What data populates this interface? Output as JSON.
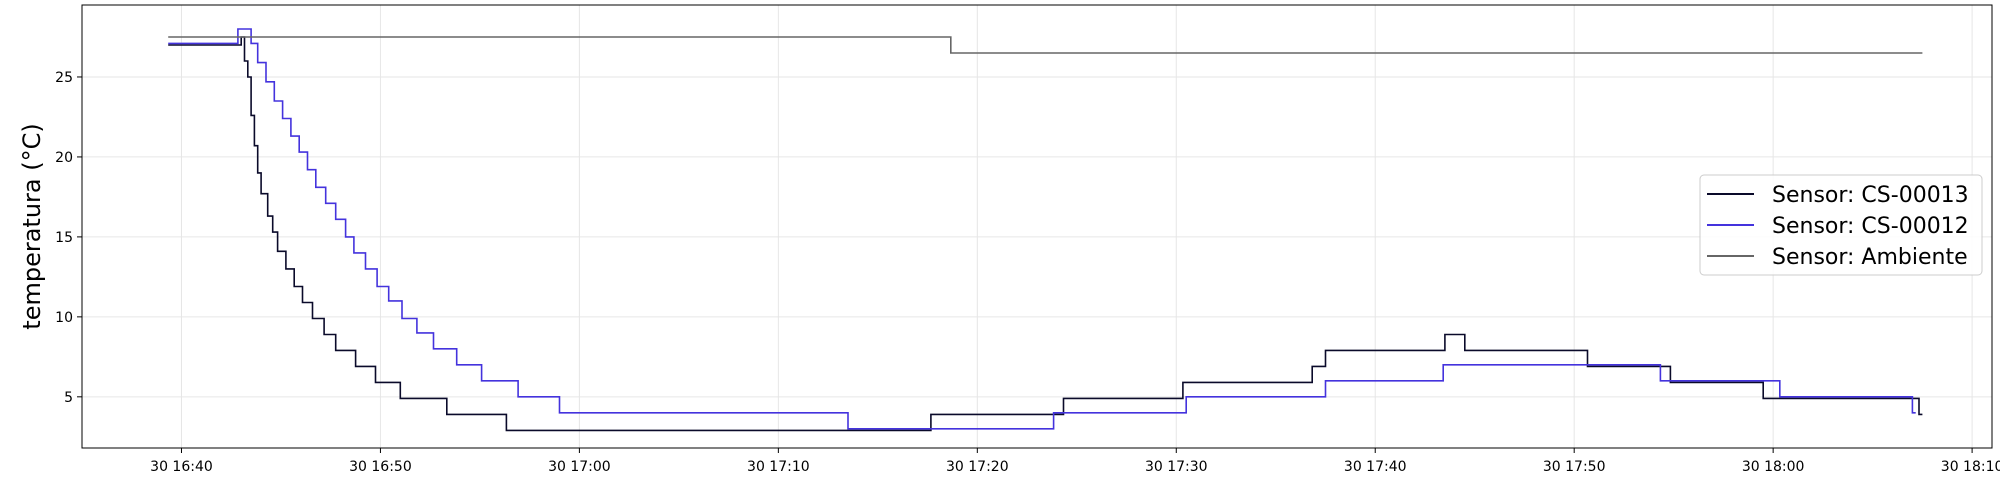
{
  "chart_data": {
    "type": "line",
    "step": "post",
    "title": "",
    "xlabel": "",
    "ylabel": "temperatura (°C)",
    "xlim": [
      "16:35",
      "18:11"
    ],
    "ylim": [
      1.8,
      29.5
    ],
    "grid": true,
    "legend_position": "center-right",
    "x_ticks": [
      {
        "value": "16:40",
        "label": "30 16:40"
      },
      {
        "value": "16:50",
        "label": "30 16:50"
      },
      {
        "value": "17:00",
        "label": "30 17:00"
      },
      {
        "value": "17:10",
        "label": "30 17:10"
      },
      {
        "value": "17:20",
        "label": "30 17:20"
      },
      {
        "value": "17:30",
        "label": "30 17:30"
      },
      {
        "value": "17:40",
        "label": "30 17:40"
      },
      {
        "value": "17:50",
        "label": "30 17:50"
      },
      {
        "value": "18:00",
        "label": "30 18:00"
      },
      {
        "value": "18:10",
        "label": "30 18:10"
      }
    ],
    "y_ticks": [
      {
        "value": 5,
        "label": "5"
      },
      {
        "value": 10,
        "label": "10"
      },
      {
        "value": 15,
        "label": "15"
      },
      {
        "value": 20,
        "label": "20"
      },
      {
        "value": 25,
        "label": "25"
      }
    ],
    "series": [
      {
        "name": "Sensor: CS-00013",
        "color": "#0a0a2a",
        "points": [
          [
            "16:39:20",
            27.0
          ],
          [
            "16:43:00",
            27.5
          ],
          [
            "16:43:10",
            26.0
          ],
          [
            "16:43:20",
            25.0
          ],
          [
            "16:43:30",
            22.6
          ],
          [
            "16:43:40",
            20.7
          ],
          [
            "16:43:50",
            19.0
          ],
          [
            "16:44:00",
            17.7
          ],
          [
            "16:44:20",
            16.3
          ],
          [
            "16:44:35",
            15.3
          ],
          [
            "16:44:50",
            14.1
          ],
          [
            "16:45:15",
            13.0
          ],
          [
            "16:45:40",
            11.9
          ],
          [
            "16:46:05",
            10.9
          ],
          [
            "16:46:35",
            9.9
          ],
          [
            "16:47:10",
            8.9
          ],
          [
            "16:47:45",
            7.9
          ],
          [
            "16:48:45",
            6.9
          ],
          [
            "16:49:45",
            5.9
          ],
          [
            "16:51:00",
            4.9
          ],
          [
            "16:53:20",
            3.9
          ],
          [
            "16:56:20",
            2.9
          ],
          [
            "17:17:40",
            3.9
          ],
          [
            "17:24:20",
            4.9
          ],
          [
            "17:30:20",
            5.9
          ],
          [
            "17:36:50",
            6.9
          ],
          [
            "17:37:30",
            7.9
          ],
          [
            "17:43:30",
            8.9
          ],
          [
            "17:44:30",
            7.9
          ],
          [
            "17:50:40",
            6.9
          ],
          [
            "17:54:50",
            5.9
          ],
          [
            "17:59:30",
            4.9
          ],
          [
            "18:07:20",
            3.9
          ],
          [
            "18:07:30",
            3.9
          ]
        ]
      },
      {
        "name": "Sensor: CS-00012",
        "color": "#4433dd",
        "points": [
          [
            "16:39:20",
            27.1
          ],
          [
            "16:42:50",
            28.0
          ],
          [
            "16:43:30",
            27.1
          ],
          [
            "16:43:50",
            25.9
          ],
          [
            "16:44:15",
            24.7
          ],
          [
            "16:44:40",
            23.5
          ],
          [
            "16:45:05",
            22.4
          ],
          [
            "16:45:30",
            21.3
          ],
          [
            "16:45:55",
            20.3
          ],
          [
            "16:46:20",
            19.2
          ],
          [
            "16:46:45",
            18.1
          ],
          [
            "16:47:15",
            17.1
          ],
          [
            "16:47:45",
            16.1
          ],
          [
            "16:48:15",
            15.0
          ],
          [
            "16:48:40",
            14.0
          ],
          [
            "16:49:15",
            13.0
          ],
          [
            "16:49:50",
            11.9
          ],
          [
            "16:50:25",
            11.0
          ],
          [
            "16:51:05",
            9.9
          ],
          [
            "16:51:50",
            9.0
          ],
          [
            "16:52:40",
            8.0
          ],
          [
            "16:53:50",
            7.0
          ],
          [
            "16:55:05",
            6.0
          ],
          [
            "16:56:55",
            5.0
          ],
          [
            "16:59:00",
            4.0
          ],
          [
            "17:13:30",
            3.0
          ],
          [
            "17:23:50",
            4.0
          ],
          [
            "17:30:30",
            5.0
          ],
          [
            "17:37:30",
            6.0
          ],
          [
            "17:43:25",
            7.0
          ],
          [
            "17:54:20",
            6.0
          ],
          [
            "18:00:20",
            5.0
          ],
          [
            "18:07:00",
            4.0
          ],
          [
            "18:07:10",
            4.0
          ]
        ]
      },
      {
        "name": "Sensor: Ambiente",
        "color": "#666666",
        "points": [
          [
            "16:39:20",
            27.5
          ],
          [
            "17:18:40",
            26.5
          ],
          [
            "18:07:30",
            26.5
          ]
        ]
      }
    ]
  }
}
